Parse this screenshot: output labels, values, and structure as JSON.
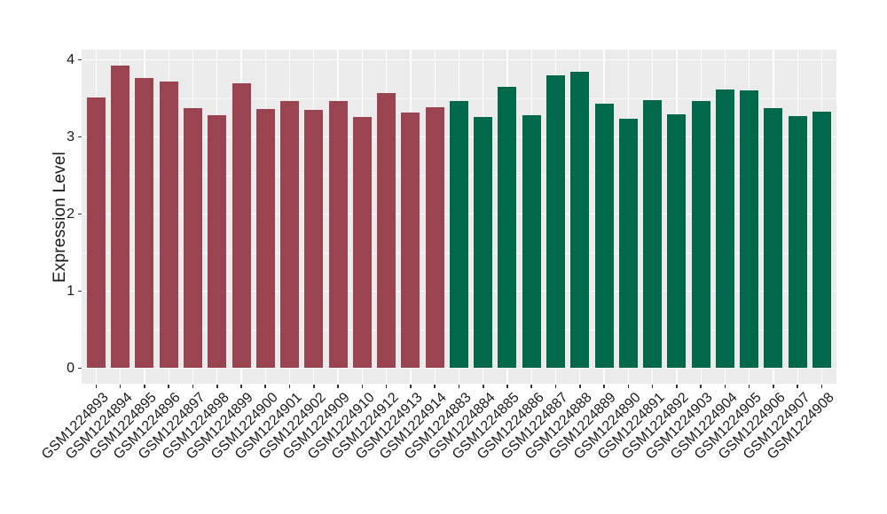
{
  "chart_data": {
    "type": "bar",
    "title": "",
    "xlabel": "",
    "ylabel": "Expression Level",
    "ylim": [
      0,
      4
    ],
    "yticks": [
      "0",
      "1",
      "2",
      "3",
      "4"
    ],
    "grid": true,
    "legend": false,
    "colors": {
      "panel_background": "#EBEBEB",
      "gridline": "#FFFFFF",
      "axis_text": "#1A1A1A",
      "tick_mark": "#333333",
      "group1_bar": "#9A4452",
      "group2_bar": "#00684B"
    },
    "series": [
      {
        "name": "group-1-red",
        "color": "#9A4452",
        "categories": [
          "GSM1224893",
          "GSM1224894",
          "GSM1224895",
          "GSM1224896",
          "GSM1224897",
          "GSM1224898",
          "GSM1224899",
          "GSM1224900",
          "GSM1224901",
          "GSM1224902",
          "GSM1224909",
          "GSM1224910",
          "GSM1224912",
          "GSM1224913",
          "GSM1224914"
        ],
        "values": [
          3.51,
          3.93,
          3.76,
          3.72,
          3.37,
          3.28,
          3.7,
          3.36,
          3.46,
          3.35,
          3.46,
          3.26,
          3.57,
          3.32,
          3.39
        ]
      },
      {
        "name": "group-2-green",
        "color": "#00684B",
        "categories": [
          "GSM1224883",
          "GSM1224884",
          "GSM1224885",
          "GSM1224886",
          "GSM1224887",
          "GSM1224888",
          "GSM1224889",
          "GSM1224890",
          "GSM1224891",
          "GSM1224892",
          "GSM1224903",
          "GSM1224904",
          "GSM1224905",
          "GSM1224906",
          "GSM1224907",
          "GSM1224908"
        ],
        "values": [
          3.46,
          3.26,
          3.65,
          3.28,
          3.8,
          3.84,
          3.43,
          3.23,
          3.48,
          3.29,
          3.46,
          3.62,
          3.6,
          3.37,
          3.27,
          3.33
        ]
      }
    ]
  }
}
